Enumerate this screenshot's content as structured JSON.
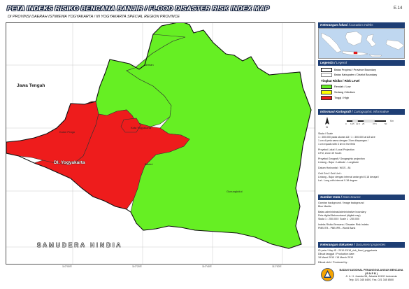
{
  "title": "PETA INDEKS RISIKO BENCANA BANJIR / FLOOD DISASTER RISK INDEX MAP",
  "subtitle": "DI PROVINSI DAERAH ISTIMEWA YOGYAKARTA / IN YOGYAKARTA SPECIAL REGION PROVINCE",
  "sheet_code": "E.14",
  "map": {
    "labels": {
      "province": "Jawa Tengah",
      "district_sleman": "Sleman",
      "district_kulon_progo": "Kulon Progo",
      "district_kota": "Kota Yogyakarta",
      "district_bantul": "Bantul",
      "district_gunungkidul": "Gunungkidul",
      "region_diy": "DI. Yogyakarta",
      "sea": "SAMUDERA HINDIA"
    },
    "risk_by_district": {
      "Sleman": "Rendah / Low",
      "Gunungkidul": "Rendah / Low",
      "Kulon Progo": "Tinggi / High",
      "Kota Yogyakarta": "Tinggi / High",
      "Bantul": "Tinggi / High"
    },
    "colors": {
      "low": "#66ef23",
      "medium": "#ffff00",
      "high": "#ee1c1c",
      "outside": "#ffffff",
      "title_header_bg": "#1e3e74"
    }
  },
  "location_panel": {
    "header": "Keterangan lokasi",
    "header_secondary": "Location Indeks"
  },
  "legend": {
    "header": "Legenda",
    "header_secondary": "Legend",
    "boundaries": [
      {
        "label": "Batas Propinsi / Province Boundary"
      },
      {
        "label": "Batas Kabupaten / District Boundary"
      }
    ],
    "risk_title": "Tingkat Risiko / Risk Level",
    "risk_levels": [
      {
        "label": "Rendah / Low",
        "color": "#66ef23"
      },
      {
        "label": "Sedang / Medium",
        "color": "#ffff00"
      },
      {
        "label": "Tinggi / High",
        "color": "#ee1c1c"
      }
    ]
  },
  "cartographic": {
    "header": "Informasi Kartografi",
    "header_secondary": "Cartographic Informative",
    "scale_ticks": [
      "0",
      "6.25",
      "12.5",
      "25",
      "37.5",
      "50"
    ],
    "scale_unit": "Km",
    "lines": [
      "Skala / Scale",
      "1 : 300.000 pada ukuran A3 / 1 : 300.000 at A3 size",
      "1 cm di peta sama dengan 3 km dilapangan /",
      "1 cm equals with 3 km in the field",
      "",
      "Proyeksi Lokal / Local Projection",
      "UTM, Zone 49 South",
      "",
      "Proyeksi Geografi / Geographic projection",
      "Lintang - Bujur / Latitude - Longitude",
      "",
      "Datum Horizontal : WGS - 84",
      "",
      "Grid Grid / Grid Unit :",
      "Lintang - Bujur dengan interval antar grid 0,18 derajat /",
      "Lat - Long with interval 0.18 degree"
    ]
  },
  "data_source": {
    "header": "Sumber Data",
    "header_secondary": "Data Source",
    "lines": [
      "Gambar background / Image background",
      "Blue Marble",
      "",
      "Batas administrasi/administrative boundary",
      "Peta digital Bakosurtanal (digital map)",
      "Skala 1 : 250.000 / Scale 1 : 250.000",
      "",
      "Indeks Risiko Bencana / Disaster Risk Indeks",
      "PMB ITB - PBB IPB - World Bank"
    ]
  },
  "document_info": {
    "header": "Keterangan dokumen",
    "header_secondary": "Document properties",
    "lines": [
      "ID peta / Map ID : 2010.03/18_risk_flood_yogyakarta",
      "Dibuat tanggal / Production date :",
      "18 Maret 2010 / 18 March 2010"
    ],
    "revision_label": "Dibuat oleh / Produced by :"
  },
  "agency": {
    "name": "BADAN NASIONAL PENANGGULANGAN BENCANA",
    "abbr": "( B N P B )",
    "address": "Jl. Ir. H. Juanda 36, Jakarta 10120 Indonesia",
    "phone": "Telp. 021 345 8400, Fax. 021 345 8500"
  }
}
